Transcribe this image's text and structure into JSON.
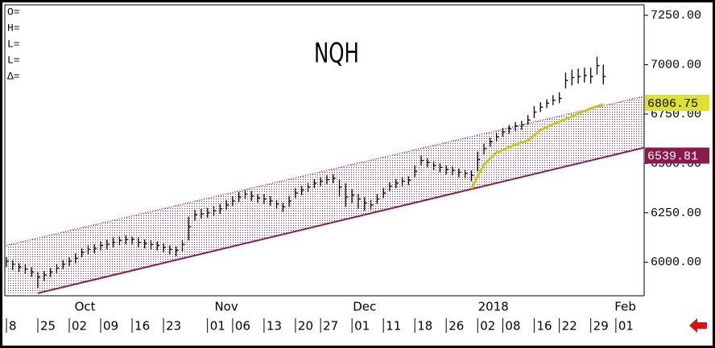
{
  "chart_data": {
    "type": "ohlc",
    "title": "NQH",
    "info_labels": [
      "O=",
      "H=",
      "L=",
      "L=",
      "Δ="
    ],
    "xlim": [
      0,
      101.5
    ],
    "ylim": [
      5830,
      7295
    ],
    "yticks": [
      {
        "value": 6000,
        "label": "6000.00"
      },
      {
        "value": 6250,
        "label": "6250.00"
      },
      {
        "value": 6500,
        "label": "6500.00"
      },
      {
        "value": 6750,
        "label": "6750.00"
      },
      {
        "value": 7000,
        "label": "7000.00"
      },
      {
        "value": 7250,
        "label": "7250.00"
      }
    ],
    "xticks": [
      {
        "value": 0,
        "label": "8"
      },
      {
        "value": 5,
        "label": "25"
      },
      {
        "value": 10,
        "label": "02"
      },
      {
        "value": 15,
        "label": "09"
      },
      {
        "value": 20,
        "label": "16"
      },
      {
        "value": 25,
        "label": "23"
      },
      {
        "value": 32,
        "label": "01"
      },
      {
        "value": 36,
        "label": "06"
      },
      {
        "value": 41,
        "label": "13"
      },
      {
        "value": 46,
        "label": "20"
      },
      {
        "value": 50,
        "label": "27"
      },
      {
        "value": 55,
        "label": "01"
      },
      {
        "value": 60,
        "label": "11"
      },
      {
        "value": 65,
        "label": "18"
      },
      {
        "value": 70,
        "label": "26"
      },
      {
        "value": 75,
        "label": "02"
      },
      {
        "value": 79,
        "label": "08"
      },
      {
        "value": 84,
        "label": "16"
      },
      {
        "value": 88,
        "label": "22"
      },
      {
        "value": 93,
        "label": "29"
      },
      {
        "value": 97,
        "label": "01"
      }
    ],
    "month_labels": [
      {
        "value": 12.5,
        "label": "Oct"
      },
      {
        "value": 35,
        "label": "Nov"
      },
      {
        "value": 57,
        "label": "Dec"
      },
      {
        "value": 77.5,
        "label": "2018"
      },
      {
        "value": 98.5,
        "label": "Feb"
      }
    ],
    "bar_color": "#000000",
    "high": [
      6025,
      6010,
      5995,
      5990,
      5975,
      5950,
      5955,
      5970,
      5990,
      6010,
      6025,
      6045,
      6070,
      6085,
      6090,
      6105,
      6115,
      6125,
      6130,
      6135,
      6130,
      6125,
      6115,
      6110,
      6105,
      6095,
      6085,
      6080,
      6110,
      6230,
      6265,
      6270,
      6275,
      6285,
      6295,
      6315,
      6335,
      6355,
      6365,
      6360,
      6345,
      6345,
      6335,
      6315,
      6300,
      6335,
      6375,
      6385,
      6400,
      6420,
      6430,
      6440,
      6445,
      6420,
      6400,
      6370,
      6345,
      6330,
      6315,
      6345,
      6375,
      6405,
      6420,
      6430,
      6435,
      6490,
      6540,
      6525,
      6510,
      6500,
      6490,
      6485,
      6475,
      6470,
      6465,
      6560,
      6600,
      6630,
      6655,
      6680,
      6695,
      6710,
      6715,
      6745,
      6790,
      6810,
      6825,
      6845,
      6860,
      6960,
      6975,
      6980,
      6985,
      6985,
      7040,
      7000
    ],
    "low": [
      5975,
      5960,
      5950,
      5940,
      5925,
      5870,
      5905,
      5925,
      5945,
      5965,
      5980,
      5995,
      6025,
      6040,
      6045,
      6060,
      6065,
      6075,
      6085,
      6090,
      6090,
      6075,
      6070,
      6065,
      6060,
      6050,
      6040,
      6030,
      6055,
      6110,
      6210,
      6220,
      6225,
      6235,
      6245,
      6265,
      6285,
      6305,
      6320,
      6310,
      6300,
      6295,
      6285,
      6270,
      6255,
      6280,
      6325,
      6340,
      6355,
      6375,
      6385,
      6395,
      6400,
      6330,
      6280,
      6300,
      6270,
      6260,
      6265,
      6295,
      6325,
      6360,
      6375,
      6385,
      6390,
      6430,
      6490,
      6480,
      6465,
      6455,
      6445,
      6440,
      6430,
      6425,
      6410,
      6460,
      6545,
      6585,
      6610,
      6635,
      6650,
      6665,
      6670,
      6695,
      6730,
      6760,
      6780,
      6795,
      6805,
      6880,
      6895,
      6905,
      6910,
      6905,
      6950,
      6900
    ],
    "close": [
      6005,
      5990,
      5975,
      5965,
      5950,
      5925,
      5935,
      5950,
      5970,
      5990,
      6005,
      6020,
      6050,
      6065,
      6070,
      6085,
      6090,
      6100,
      6110,
      6115,
      6115,
      6100,
      6095,
      6090,
      6085,
      6075,
      6065,
      6060,
      6090,
      6180,
      6240,
      6245,
      6250,
      6260,
      6270,
      6290,
      6310,
      6330,
      6345,
      6335,
      6325,
      6320,
      6310,
      6295,
      6280,
      6310,
      6350,
      6365,
      6380,
      6400,
      6410,
      6418,
      6425,
      6380,
      6330,
      6340,
      6320,
      6300,
      6290,
      6320,
      6350,
      6385,
      6400,
      6410,
      6415,
      6460,
      6515,
      6505,
      6490,
      6480,
      6470,
      6465,
      6455,
      6450,
      6440,
      6520,
      6575,
      6610,
      6635,
      6660,
      6675,
      6690,
      6695,
      6720,
      6760,
      6785,
      6805,
      6820,
      6830,
      6920,
      6935,
      6940,
      6945,
      6940,
      6995,
      6940
    ],
    "channel_color": "#8b1a4a",
    "channel_upper": {
      "x": [
        0,
        101.5
      ],
      "values": [
        6085,
        6840
      ]
    },
    "channel_lower": {
      "x": [
        5,
        101.5
      ],
      "values": [
        5843,
        6580
      ]
    },
    "moving_average": {
      "color": "#c8c820",
      "x": [
        74,
        76,
        78,
        81,
        83,
        85,
        87,
        90,
        93,
        95
      ],
      "values": [
        6372,
        6494,
        6555,
        6596,
        6616,
        6669,
        6698,
        6738,
        6779,
        6800
      ]
    },
    "price_labels": [
      {
        "value": 6806.75,
        "label": "6806.75",
        "background": "#e0e030",
        "color": "#000000"
      },
      {
        "value": 6539.81,
        "label": "6539.81",
        "background": "#8b1a4a",
        "color": "#ffffff"
      }
    ]
  }
}
